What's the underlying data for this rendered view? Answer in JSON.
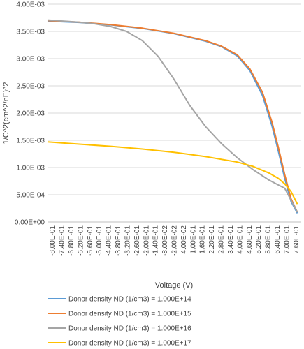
{
  "chart_data": {
    "type": "line",
    "xlabel": "Voltage (V)",
    "ylabel": "1/C^2(cm^2/nF)^2",
    "x_tick_labels": [
      "-8.00E-01",
      "-7.40E-01",
      "-6.80E-01",
      "-6.20E-01",
      "-5.60E-01",
      "-5.00E-01",
      "-4.40E-01",
      "-3.80E-01",
      "-3.20E-01",
      "-2.60E-01",
      "-2.00E-01",
      "-1.40E-01",
      "-8.00E-02",
      "-2.00E-02",
      "4.00E-02",
      "1.00E-01",
      "1.60E-01",
      "2.20E-01",
      "2.80E-01",
      "3.40E-01",
      "4.00E-01",
      "4.60E-01",
      "5.20E-01",
      "5.80E-01",
      "6.40E-01",
      "7.00E-01",
      "7.60E-01"
    ],
    "y_tick_labels": [
      "0.00E+00",
      "5.00E-04",
      "1.00E-03",
      "1.50E-03",
      "2.00E-03",
      "2.50E-03",
      "3.00E-03",
      "3.50E-03",
      "4.00E-03"
    ],
    "xlim": [
      -0.8,
      0.8
    ],
    "ylim": [
      0,
      0.004
    ],
    "grid": "horizontal",
    "legend_position": "bottom",
    "series": [
      {
        "name": "Donor density ND (1/cm3) = 1.000E+14",
        "color": "#5b9bd5",
        "points": [
          [
            -0.8,
            0.00369
          ],
          [
            -0.6,
            0.003665
          ],
          [
            -0.4,
            0.00362
          ],
          [
            -0.2,
            0.003555
          ],
          [
            0.0,
            0.00346
          ],
          [
            0.2,
            0.00332
          ],
          [
            0.3,
            0.00322
          ],
          [
            0.4,
            0.00305
          ],
          [
            0.48,
            0.00278
          ],
          [
            0.56,
            0.00232
          ],
          [
            0.62,
            0.00176
          ],
          [
            0.66,
            0.0013
          ],
          [
            0.7,
            0.0008
          ],
          [
            0.74,
            0.00038
          ],
          [
            0.78,
            0.00016
          ]
        ]
      },
      {
        "name": "Donor density ND (1/cm3) = 1.000E+15",
        "color": "#ed7d31",
        "points": [
          [
            -0.8,
            0.0037
          ],
          [
            -0.6,
            0.00367
          ],
          [
            -0.4,
            0.003625
          ],
          [
            -0.2,
            0.00356
          ],
          [
            0.0,
            0.003465
          ],
          [
            0.2,
            0.00333
          ],
          [
            0.3,
            0.00323
          ],
          [
            0.4,
            0.00307
          ],
          [
            0.48,
            0.00281
          ],
          [
            0.56,
            0.00238
          ],
          [
            0.62,
            0.00183
          ],
          [
            0.66,
            0.00137
          ],
          [
            0.7,
            0.00087
          ],
          [
            0.74,
            0.00043
          ],
          [
            0.78,
            0.00018
          ]
        ]
      },
      {
        "name": "Donor density ND (1/cm3) = 1.000E+16",
        "color": "#a5a5a5",
        "points": [
          [
            -0.8,
            0.00371
          ],
          [
            -0.6,
            0.00367
          ],
          [
            -0.5,
            0.00364
          ],
          [
            -0.4,
            0.00359
          ],
          [
            -0.3,
            0.0035
          ],
          [
            -0.2,
            0.00333
          ],
          [
            -0.1,
            0.00304
          ],
          [
            0.0,
            0.00262
          ],
          [
            0.1,
            0.00214
          ],
          [
            0.2,
            0.00175
          ],
          [
            0.3,
            0.00144
          ],
          [
            0.4,
            0.00118
          ],
          [
            0.5,
            0.00096
          ],
          [
            0.6,
            0.00077
          ],
          [
            0.66,
            0.00068
          ],
          [
            0.7,
            0.00062
          ],
          [
            0.74,
            0.0004
          ],
          [
            0.78,
            0.00018
          ]
        ]
      },
      {
        "name": "Donor density ND (1/cm3) = 1.000E+17",
        "color": "#ffc000",
        "points": [
          [
            -0.8,
            0.00147
          ],
          [
            -0.6,
            0.00143
          ],
          [
            -0.4,
            0.00139
          ],
          [
            -0.2,
            0.00134
          ],
          [
            0.0,
            0.00128
          ],
          [
            0.2,
            0.0012
          ],
          [
            0.4,
            0.0011
          ],
          [
            0.5,
            0.00102
          ],
          [
            0.6,
            0.0009
          ],
          [
            0.66,
            0.0008
          ],
          [
            0.7,
            0.0007
          ],
          [
            0.74,
            0.00056
          ],
          [
            0.78,
            0.00033
          ]
        ]
      }
    ]
  }
}
